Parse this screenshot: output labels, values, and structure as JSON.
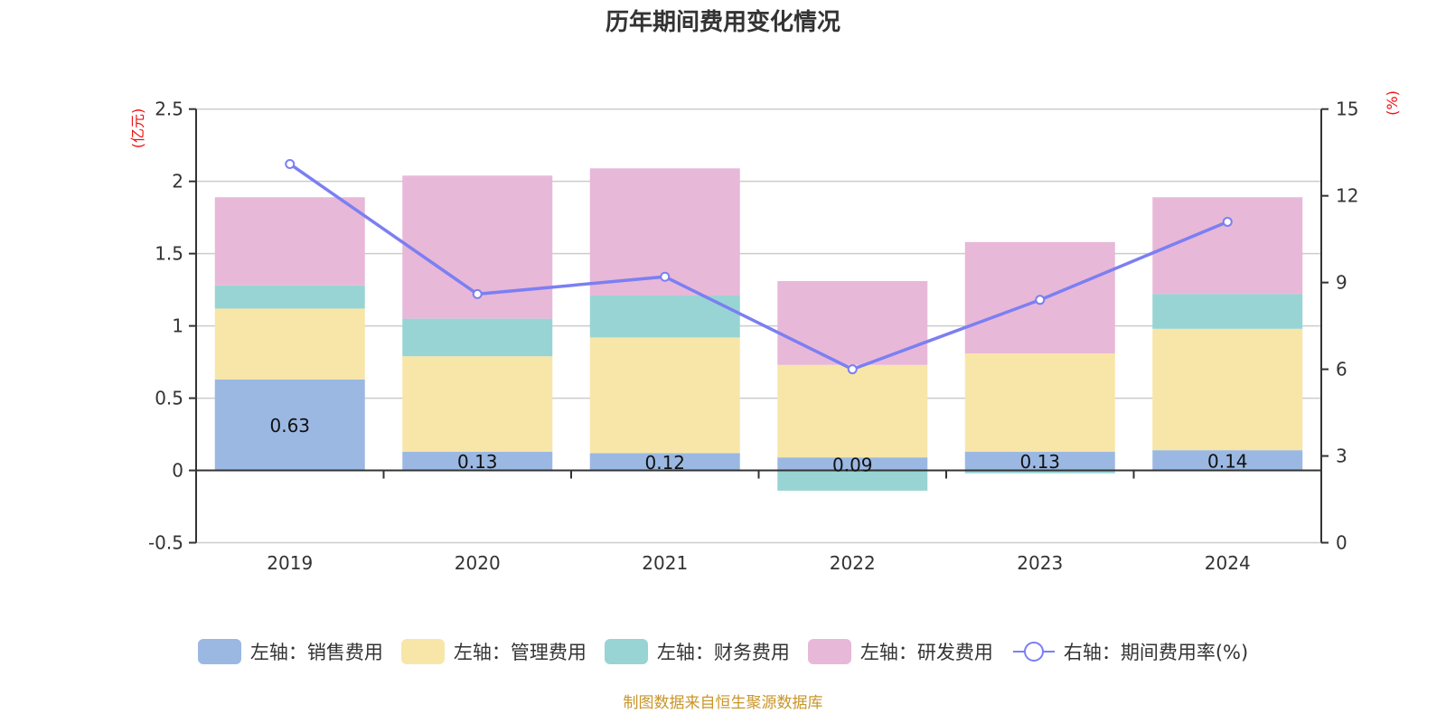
{
  "title": "历年期间费用变化情况",
  "source_note": "制图数据来自恒生聚源数据库",
  "legend": [
    {
      "label": "左轴：销售费用",
      "color": "#9bb8e2",
      "type": "bar"
    },
    {
      "label": "左轴：管理费用",
      "color": "#f8e6a8",
      "type": "bar"
    },
    {
      "label": "左轴：财务费用",
      "color": "#98d4d4",
      "type": "bar"
    },
    {
      "label": "左轴：研发费用",
      "color": "#e8b8d8",
      "type": "bar"
    },
    {
      "label": "右轴：期间费用率(%)",
      "color": "#7b7ff2",
      "type": "line"
    }
  ],
  "chart_data": {
    "type": "bar",
    "stacked": true,
    "title": "历年期间费用变化情况",
    "categories": [
      "2019",
      "2020",
      "2021",
      "2022",
      "2023",
      "2024"
    ],
    "series": [
      {
        "name": "左轴：销售费用",
        "axis": "left",
        "color": "#9bb8e2",
        "values": [
          0.63,
          0.13,
          0.12,
          0.09,
          0.13,
          0.14
        ],
        "show_labels": true
      },
      {
        "name": "左轴：管理费用",
        "axis": "left",
        "color": "#f8e6a8",
        "values": [
          0.49,
          0.66,
          0.8,
          0.64,
          0.68,
          0.84
        ]
      },
      {
        "name": "左轴：财务费用",
        "axis": "left",
        "color": "#98d4d4",
        "values": [
          0.16,
          0.26,
          0.29,
          -0.14,
          -0.02,
          0.24
        ]
      },
      {
        "name": "左轴：研发费用",
        "axis": "left",
        "color": "#e8b8d8",
        "values": [
          0.61,
          0.99,
          0.88,
          0.58,
          0.77,
          0.67
        ]
      },
      {
        "name": "右轴：期间费用率(%)",
        "axis": "right",
        "type": "line",
        "color": "#7b7ff2",
        "values": [
          13.1,
          8.6,
          9.2,
          6.0,
          8.4,
          11.1
        ]
      }
    ],
    "left_axis": {
      "label": "(亿元)",
      "ylim": [
        -0.5,
        2.5
      ],
      "ticks": [
        "-0.5",
        "0",
        "0.5",
        "1",
        "1.5",
        "2",
        "2.5"
      ],
      "tick_values": [
        -0.5,
        0,
        0.5,
        1,
        1.5,
        2,
        2.5
      ]
    },
    "right_axis": {
      "label": "(%)",
      "ylim": [
        0,
        15
      ],
      "ticks": [
        "0",
        "3",
        "6",
        "9",
        "12",
        "15"
      ],
      "tick_values": [
        0,
        3,
        6,
        9,
        12,
        15
      ]
    },
    "grid": true,
    "legend_position": "bottom"
  }
}
